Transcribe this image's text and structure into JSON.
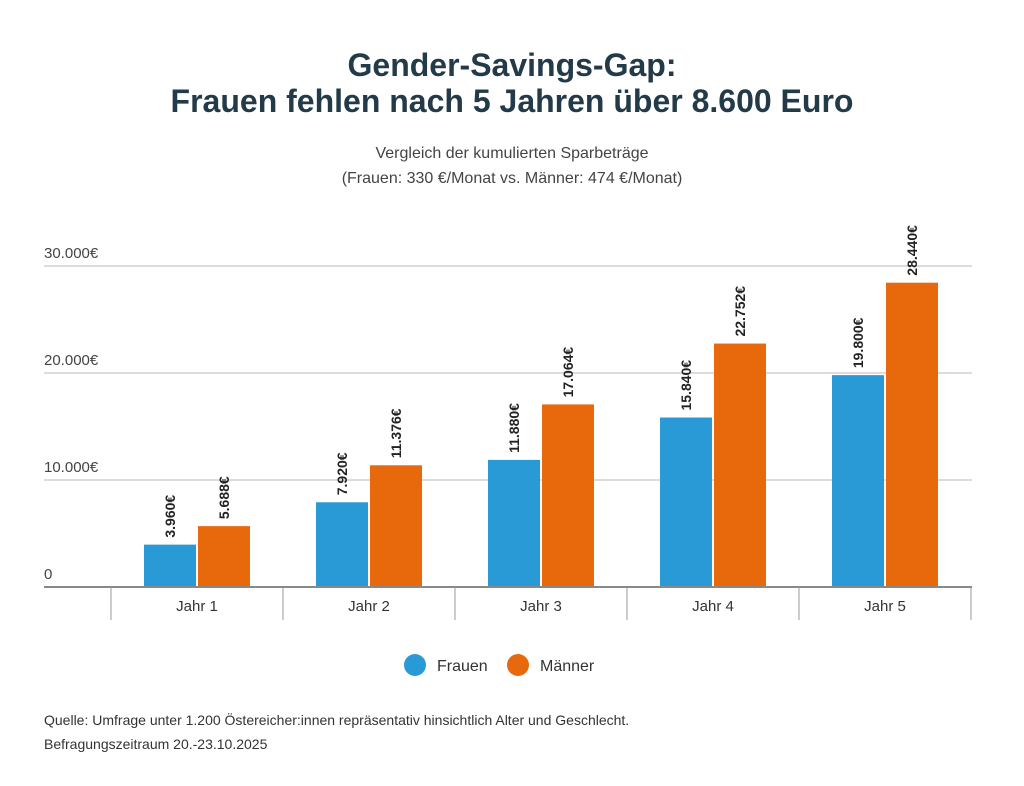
{
  "chart_data": {
    "type": "bar",
    "title": [
      "Gender-Savings-Gap:",
      "Frauen fehlen nach 5 Jahren über 8.600 Euro"
    ],
    "subtitle": [
      "Vergleich der kumulierten Sparbeträge",
      "(Frauen: 330 €/Monat vs. Männer: 474 €/Monat)"
    ],
    "categories": [
      "Jahr 1",
      "Jahr 2",
      "Jahr 3",
      "Jahr 4",
      "Jahr 5"
    ],
    "series": [
      {
        "name": "Frauen",
        "color": "#2a9ad6",
        "values": [
          3960,
          7920,
          11880,
          15840,
          19800
        ],
        "labels": [
          "3.960€",
          "7.920€",
          "11.880€",
          "15.840€",
          "19.800€"
        ]
      },
      {
        "name": "Männer",
        "color": "#e8680c",
        "values": [
          5688,
          11376,
          17064,
          22752,
          28440
        ],
        "labels": [
          "5.688€",
          "11.376€",
          "17.064€",
          "22.752€",
          "28.440€"
        ]
      }
    ],
    "yticks": [
      0,
      10000,
      20000,
      30000
    ],
    "ytick_labels": [
      "0",
      "10.000€",
      "20.000€",
      "30.000€"
    ],
    "ylim": [
      0,
      30000
    ],
    "grid": true,
    "legend": "bottom-center",
    "xlabel": "",
    "ylabel": ""
  },
  "source": [
    "Quelle: Umfrage unter 1.200 Östereicher:innen repräsentativ hinsichtlich Alter und Geschlecht.",
    "Befragungszeitraum 20.-23.10.2025"
  ]
}
